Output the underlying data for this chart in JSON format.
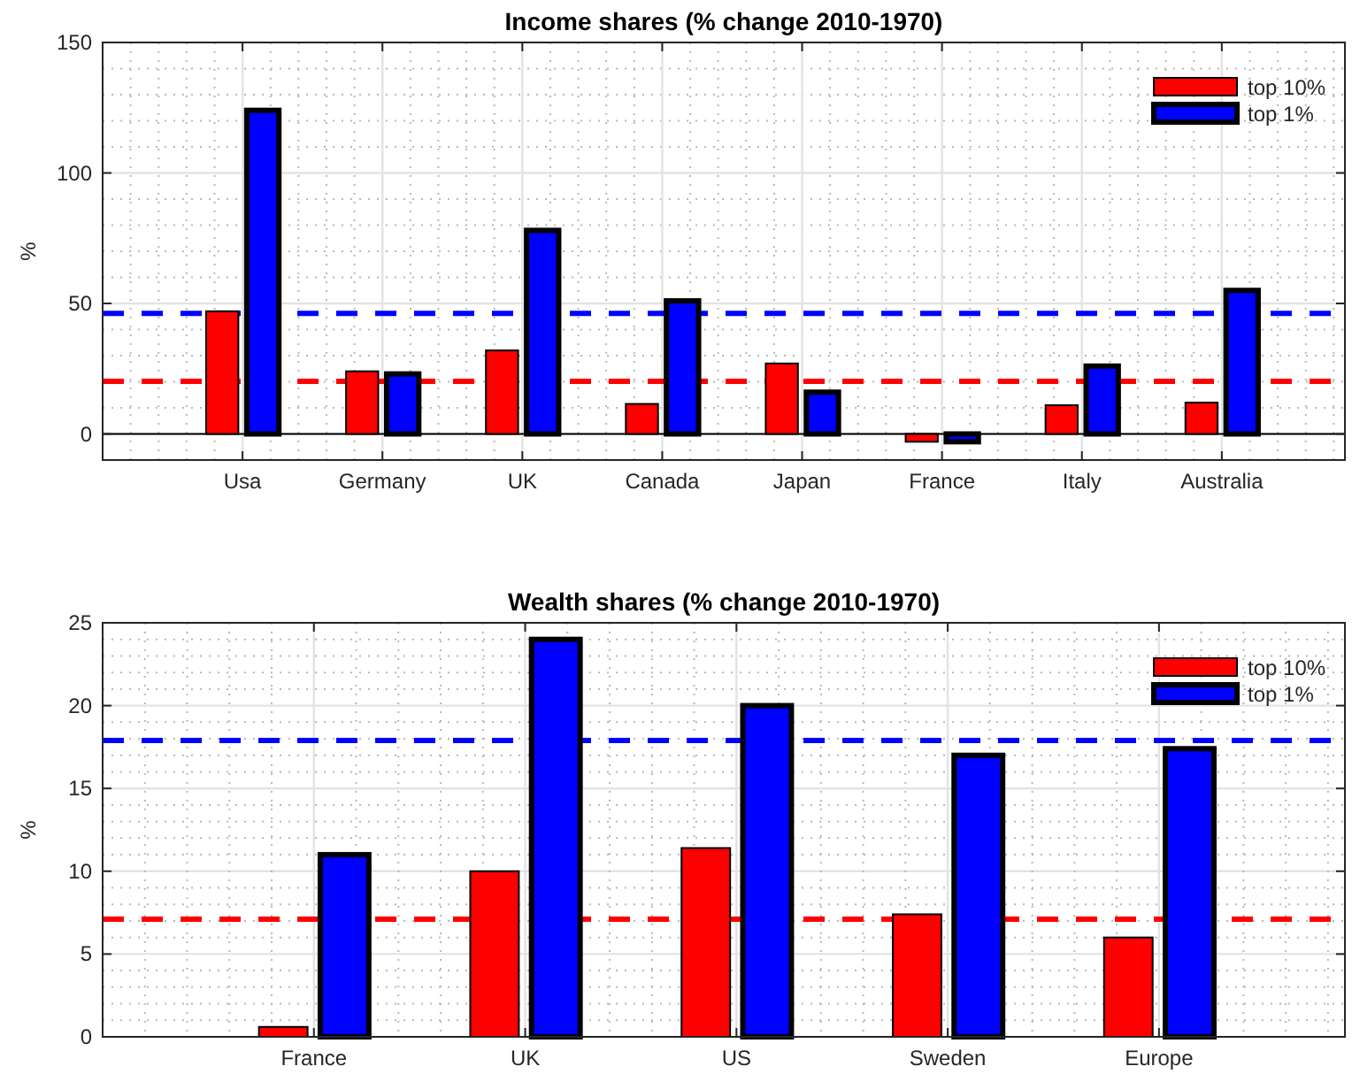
{
  "chart_data": [
    {
      "type": "bar",
      "title": "Income shares (% change 2010-1970)",
      "ylabel": "%",
      "categories": [
        "Usa",
        "Germany",
        "UK",
        "Canada",
        "Japan",
        "France",
        "Italy",
        "Australia"
      ],
      "series": [
        {
          "name": "top 10%",
          "color": "#ff0000",
          "values": [
            47,
            24,
            32,
            11.5,
            27,
            -3,
            11,
            12
          ]
        },
        {
          "name": "top 1%",
          "color": "#0000ff",
          "values": [
            124,
            23,
            78,
            51,
            16,
            -3,
            26,
            55
          ]
        }
      ],
      "ylim": [
        -10,
        150
      ],
      "yticks": [
        0,
        50,
        100,
        150
      ],
      "grid": true,
      "legend": "top right",
      "ref_lines": [
        {
          "axis": "y",
          "value": 20.2,
          "color": "#ff0000",
          "line_style": "dashed"
        },
        {
          "axis": "y",
          "value": 46.2,
          "color": "#0000ff",
          "line_style": "dashed"
        }
      ]
    },
    {
      "type": "bar",
      "title": "Wealth shares (% change 2010-1970)",
      "ylabel": "%",
      "categories": [
        "France",
        "UK",
        "US",
        "Sweden",
        "Europe"
      ],
      "series": [
        {
          "name": "top 10%",
          "color": "#ff0000",
          "values": [
            0.6,
            10,
            11.4,
            7.4,
            6
          ]
        },
        {
          "name": "top 1%",
          "color": "#0000ff",
          "values": [
            11,
            24,
            20,
            17,
            17.4
          ]
        }
      ],
      "ylim": [
        0,
        25
      ],
      "yticks": [
        0,
        5,
        10,
        15,
        20,
        25
      ],
      "grid": true,
      "legend": "top right",
      "ref_lines": [
        {
          "axis": "y",
          "value": 7.1,
          "color": "#ff0000",
          "line_style": "dashed"
        },
        {
          "axis": "y",
          "value": 17.9,
          "color": "#0000ff",
          "line_style": "dashed"
        }
      ]
    }
  ]
}
